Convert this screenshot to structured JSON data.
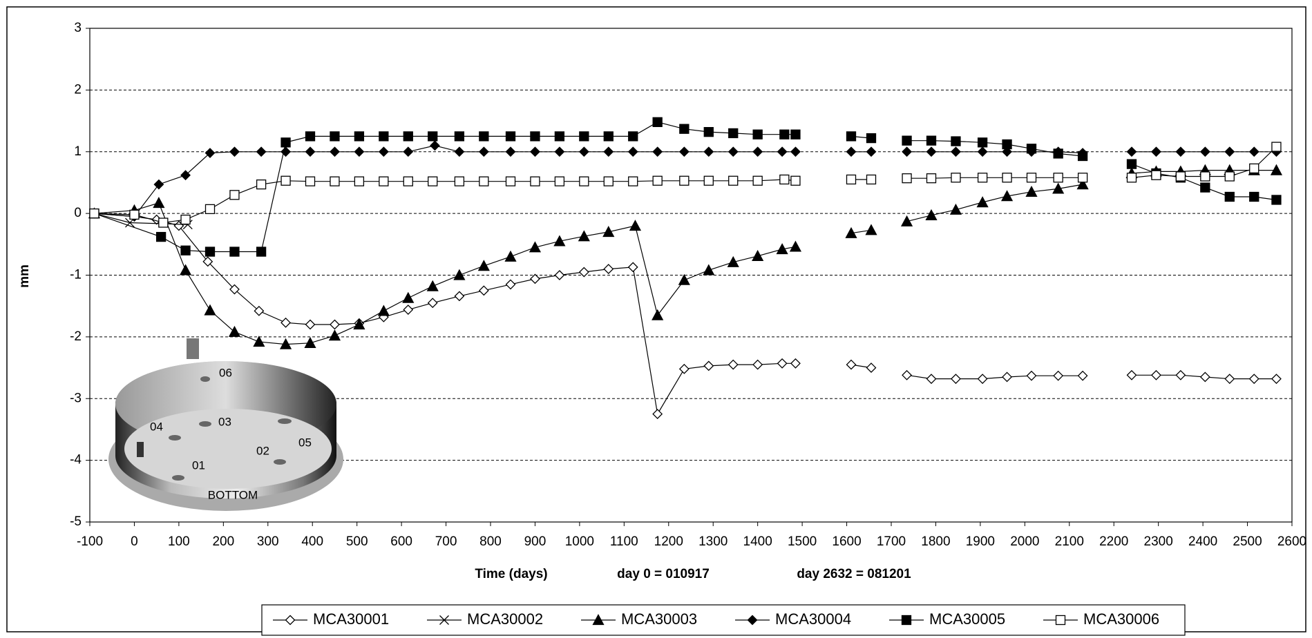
{
  "chart_data": {
    "type": "line",
    "y_label": "mm",
    "x_label": "Time (days)",
    "annotations": [
      "day 0 = 010917",
      "day 2632 = 081201"
    ],
    "xlim": [
      -100,
      2600
    ],
    "xticks": [
      -100,
      0,
      100,
      200,
      300,
      400,
      500,
      600,
      700,
      800,
      900,
      1000,
      1100,
      1200,
      1300,
      1400,
      1500,
      1600,
      1700,
      1800,
      1900,
      2000,
      2100,
      2200,
      2300,
      2400,
      2500,
      2600
    ],
    "ylim": [
      -5,
      3
    ],
    "yticks": [
      -5,
      -4,
      -3,
      -2,
      -1,
      0,
      1,
      2,
      3
    ],
    "grid": true,
    "legend": "bottom",
    "inset": {
      "labels": [
        "06",
        "03",
        "04",
        "02",
        "05",
        "01"
      ],
      "caption": "BOTTOM"
    },
    "series": [
      {
        "name": "MCA30001",
        "color": "#000000",
        "marker": "diamond-open",
        "x": [
          -90,
          0,
          50,
          100,
          165,
          225,
          280,
          340,
          395,
          450,
          505,
          560,
          615,
          670,
          730,
          785,
          845,
          900,
          955,
          1010,
          1065,
          1120,
          1175,
          1235,
          1290,
          1345,
          1400,
          1455,
          1485,
          null,
          1610,
          1655,
          null,
          1735,
          1790,
          1845,
          1905,
          1960,
          2015,
          2075,
          2130,
          null,
          2240,
          2295,
          2350,
          2405,
          2460,
          2515,
          2565
        ],
        "values": [
          0,
          -0.05,
          -0.1,
          -0.2,
          -0.78,
          -1.23,
          -1.58,
          -1.77,
          -1.8,
          -1.8,
          -1.78,
          -1.68,
          -1.56,
          -1.45,
          -1.34,
          -1.25,
          -1.15,
          -1.06,
          -1.0,
          -0.95,
          -0.9,
          -0.87,
          -3.25,
          -2.52,
          -2.47,
          -2.45,
          -2.45,
          -2.43,
          -2.43,
          null,
          -2.45,
          -2.5,
          null,
          -2.62,
          -2.68,
          -2.68,
          -2.68,
          -2.65,
          -2.63,
          -2.63,
          -2.63,
          null,
          -2.62,
          -2.62,
          -2.62,
          -2.65,
          -2.68,
          -2.68,
          -2.68
        ]
      },
      {
        "name": "MCA30002",
        "color": "#000000",
        "marker": "x",
        "x": [
          -90,
          -10,
          120
        ],
        "values": [
          0,
          -0.15,
          -0.18
        ]
      },
      {
        "name": "MCA30003",
        "color": "#000000",
        "marker": "triangle",
        "x": [
          -90,
          0,
          55,
          115,
          170,
          225,
          280,
          340,
          395,
          450,
          505,
          560,
          615,
          670,
          730,
          785,
          845,
          900,
          955,
          1010,
          1065,
          1125,
          1175,
          1235,
          1290,
          1345,
          1400,
          1455,
          1485,
          null,
          1610,
          1655,
          null,
          1735,
          1790,
          1845,
          1905,
          1960,
          2015,
          2075,
          2130,
          null,
          2240,
          2295,
          2350,
          2405,
          2460,
          2515,
          2565
        ],
        "values": [
          0,
          0.05,
          0.17,
          -0.92,
          -1.57,
          -1.92,
          -2.08,
          -2.12,
          -2.1,
          -1.98,
          -1.8,
          -1.58,
          -1.37,
          -1.18,
          -1.0,
          -0.85,
          -0.7,
          -0.55,
          -0.45,
          -0.37,
          -0.3,
          -0.2,
          -1.65,
          -1.08,
          -0.92,
          -0.79,
          -0.69,
          -0.58,
          -0.54,
          null,
          -0.32,
          -0.27,
          null,
          -0.13,
          -0.03,
          0.06,
          0.18,
          0.28,
          0.35,
          0.4,
          0.47,
          null,
          0.65,
          0.68,
          0.68,
          0.7,
          0.7,
          0.7,
          0.7
        ]
      },
      {
        "name": "MCA30004",
        "color": "#000000",
        "marker": "diamond",
        "x": [
          -90,
          0,
          55,
          115,
          170,
          225,
          285,
          340,
          395,
          450,
          505,
          560,
          615,
          675,
          730,
          785,
          845,
          900,
          955,
          1010,
          1065,
          1120,
          1175,
          1235,
          1290,
          1345,
          1400,
          1455,
          1485,
          null,
          1610,
          1655,
          null,
          1735,
          1790,
          1845,
          1905,
          1960,
          2015,
          2075,
          2130,
          null,
          2240,
          2295,
          2350,
          2405,
          2460,
          2515,
          2565
        ],
        "values": [
          0,
          -0.05,
          0.47,
          0.62,
          0.98,
          1.0,
          1.0,
          1.0,
          1.0,
          1.0,
          1.0,
          1.0,
          1.0,
          1.1,
          1.0,
          1.0,
          1.0,
          1.0,
          1.0,
          1.0,
          1.0,
          1.0,
          1.0,
          1.0,
          1.0,
          1.0,
          1.0,
          1.0,
          1.0,
          null,
          1.0,
          1.0,
          null,
          1.0,
          1.0,
          1.0,
          1.0,
          1.0,
          1.0,
          1.0,
          0.98,
          null,
          1.0,
          1.0,
          1.0,
          1.0,
          1.0,
          1.0,
          1.0
        ]
      },
      {
        "name": "MCA30005",
        "color": "#000000",
        "marker": "square",
        "x": [
          -90,
          60,
          115,
          170,
          225,
          285,
          340,
          395,
          450,
          505,
          560,
          615,
          670,
          730,
          785,
          845,
          900,
          955,
          1010,
          1065,
          1120,
          1175,
          1235,
          1290,
          1345,
          1400,
          1460,
          1485,
          null,
          1610,
          1655,
          null,
          1735,
          1790,
          1845,
          1905,
          1960,
          2015,
          2075,
          2130,
          null,
          2240,
          2295,
          2350,
          2405,
          2460,
          2515,
          2565
        ],
        "values": [
          0,
          -0.38,
          -0.6,
          -0.62,
          -0.62,
          -0.62,
          1.15,
          1.25,
          1.25,
          1.25,
          1.25,
          1.25,
          1.25,
          1.25,
          1.25,
          1.25,
          1.25,
          1.25,
          1.25,
          1.25,
          1.25,
          1.48,
          1.37,
          1.32,
          1.3,
          1.28,
          1.28,
          1.28,
          null,
          1.25,
          1.22,
          null,
          1.18,
          1.18,
          1.17,
          1.15,
          1.12,
          1.05,
          0.97,
          0.93,
          null,
          0.8,
          0.65,
          0.58,
          0.42,
          0.27,
          0.27,
          0.22
        ]
      },
      {
        "name": "MCA30006",
        "color": "#000000",
        "marker": "square-open",
        "x": [
          -90,
          0,
          65,
          115,
          170,
          225,
          285,
          340,
          395,
          450,
          505,
          560,
          615,
          670,
          730,
          785,
          845,
          900,
          955,
          1010,
          1065,
          1120,
          1175,
          1235,
          1290,
          1345,
          1400,
          1460,
          1485,
          null,
          1610,
          1655,
          null,
          1735,
          1790,
          1845,
          1905,
          1960,
          2015,
          2075,
          2130,
          null,
          2240,
          2295,
          2350,
          2405,
          2460,
          2515,
          2565
        ],
        "values": [
          0,
          -0.02,
          -0.15,
          -0.1,
          0.07,
          0.3,
          0.47,
          0.53,
          0.52,
          0.52,
          0.52,
          0.52,
          0.52,
          0.52,
          0.52,
          0.52,
          0.52,
          0.52,
          0.52,
          0.52,
          0.52,
          0.52,
          0.53,
          0.53,
          0.53,
          0.53,
          0.53,
          0.55,
          0.53,
          null,
          0.55,
          0.55,
          null,
          0.57,
          0.57,
          0.58,
          0.58,
          0.58,
          0.58,
          0.58,
          0.58,
          null,
          0.58,
          0.62,
          0.6,
          0.6,
          0.6,
          0.73,
          1.08
        ]
      }
    ]
  }
}
